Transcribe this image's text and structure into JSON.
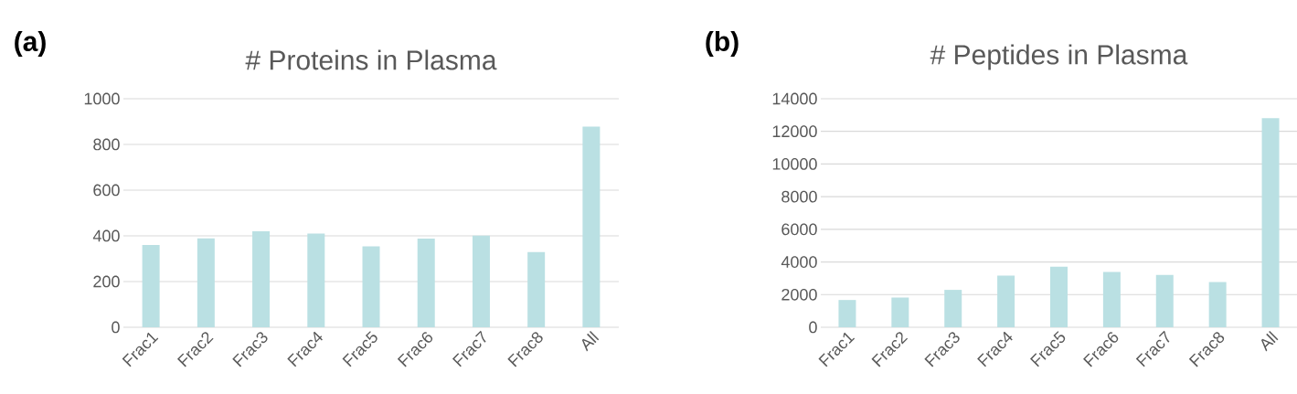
{
  "chart_data": [
    {
      "type": "bar",
      "title": "# Proteins in Plasma",
      "categories": [
        "Frac1",
        "Frac2",
        "Frac3",
        "Frac4",
        "Frac5",
        "Frac6",
        "Frac7",
        "Frac8",
        "All"
      ],
      "values": [
        360,
        389,
        420,
        410,
        354,
        388,
        401,
        329,
        878
      ],
      "color": "#bae0e3",
      "ylim": [
        0,
        1000
      ],
      "yticks": [
        0,
        200,
        400,
        600,
        800,
        1000
      ],
      "grid": "y",
      "annotations": [
        "(a)"
      ]
    },
    {
      "type": "bar",
      "title": "# Peptides in Plasma",
      "categories": [
        "Frac1",
        "Frac2",
        "Frac3",
        "Frac4",
        "Frac5",
        "Frac6",
        "Frac7",
        "Frac8",
        "All"
      ],
      "values": [
        1670,
        1820,
        2290,
        3170,
        3710,
        3390,
        3210,
        2770,
        12810
      ],
      "color": "#bae0e3",
      "ylim": [
        0,
        14000
      ],
      "yticks": [
        0,
        2000,
        4000,
        6000,
        8000,
        10000,
        12000,
        14000
      ],
      "grid": "y",
      "annotations": [
        "(b)"
      ]
    }
  ]
}
